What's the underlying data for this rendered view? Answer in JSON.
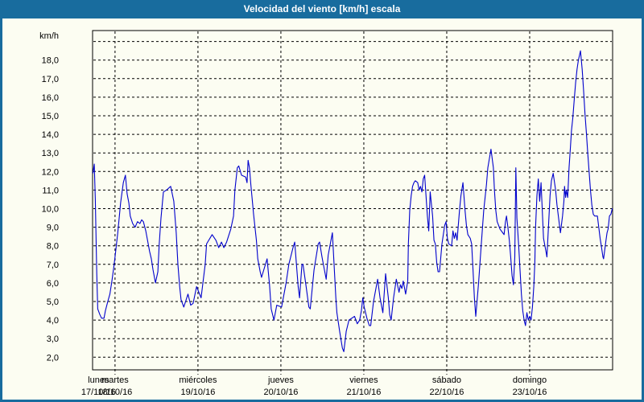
{
  "window": {
    "title": "Velocidad del viento [km/h] escala"
  },
  "colors": {
    "header_bg": "#186c9e",
    "header_text": "#ffffff",
    "border": "#186c9e",
    "chart_bg": "#fcfdf2",
    "line": "#0000cc",
    "grid": "#000000",
    "text": "#000000"
  },
  "chart_data": {
    "type": "line",
    "title": "Velocidad del viento [km/h] escala",
    "ylabel": "km/h",
    "grid": true,
    "legend_position": "none",
    "y_gridline_min": 2,
    "y_gridline_max": 19,
    "y_tick_values": [
      18,
      17,
      16,
      15,
      14,
      13,
      12,
      11,
      10,
      9,
      8,
      7,
      6,
      5,
      4,
      3,
      2
    ],
    "y_tick_labels": [
      "18,0",
      "17,0",
      "16,0",
      "15,0",
      "14,0",
      "13,0",
      "12,0",
      "11,0",
      "10,0",
      "9,0",
      "8,0",
      "7,0",
      "6,0",
      "5,0",
      "4,0",
      "3,0",
      "2,0"
    ],
    "x_domain_hours": [
      17.5,
      168
    ],
    "x_days": [
      {
        "name": "lunes",
        "date": "17/10/16",
        "tick_hour": 0,
        "label_hour": 19.2
      },
      {
        "name": "martes",
        "date": "18/10/16",
        "tick_hour": 24,
        "label_hour": 24
      },
      {
        "name": "miércoles",
        "date": "19/10/16",
        "tick_hour": 48,
        "label_hour": 48
      },
      {
        "name": "jueves",
        "date": "20/10/16",
        "tick_hour": 72,
        "label_hour": 72
      },
      {
        "name": "viernes",
        "date": "21/10/16",
        "tick_hour": 96,
        "label_hour": 96
      },
      {
        "name": "sábado",
        "date": "22/10/16",
        "tick_hour": 120,
        "label_hour": 120
      },
      {
        "name": "domingo",
        "date": "23/10/16",
        "tick_hour": 144,
        "label_hour": 144
      }
    ],
    "series": [
      {
        "name": "Velocidad del viento [km/h]",
        "points": [
          [
            17.6,
            11.9
          ],
          [
            18,
            12.4
          ],
          [
            18.3,
            10.5
          ],
          [
            18.7,
            6.5
          ],
          [
            19,
            4.6
          ],
          [
            19.6,
            4.3
          ],
          [
            20.1,
            4.1
          ],
          [
            20.8,
            4.1
          ],
          [
            21.2,
            4.5
          ],
          [
            21.9,
            5
          ],
          [
            22.5,
            5.4
          ],
          [
            23.1,
            6.1
          ],
          [
            23.6,
            6.8
          ],
          [
            24,
            7.4
          ],
          [
            24.8,
            8.7
          ],
          [
            25.6,
            10.3
          ],
          [
            26.4,
            11.4
          ],
          [
            27,
            11.8
          ],
          [
            27.5,
            10.8
          ],
          [
            28,
            10.3
          ],
          [
            28.4,
            9.6
          ],
          [
            29.1,
            9.2
          ],
          [
            29.8,
            9
          ],
          [
            30.5,
            9.3
          ],
          [
            31.2,
            9.2
          ],
          [
            31.7,
            9.4
          ],
          [
            32.2,
            9.3
          ],
          [
            32.9,
            8.8
          ],
          [
            33.6,
            8.1
          ],
          [
            34,
            7.7
          ],
          [
            34.5,
            7.3
          ],
          [
            35,
            6.7
          ],
          [
            35.7,
            6
          ],
          [
            36.4,
            6.6
          ],
          [
            36.8,
            8.1
          ],
          [
            37.3,
            9.5
          ],
          [
            38,
            10.9
          ],
          [
            38.9,
            11
          ],
          [
            40.1,
            11.2
          ],
          [
            41,
            10.4
          ],
          [
            41.7,
            8.7
          ],
          [
            42.2,
            7
          ],
          [
            42.7,
            5.8
          ],
          [
            43.1,
            5.1
          ],
          [
            43.9,
            4.7
          ],
          [
            45.1,
            5.4
          ],
          [
            45.9,
            4.8
          ],
          [
            46.6,
            4.9
          ],
          [
            47.6,
            5.8
          ],
          [
            48.9,
            5.2
          ],
          [
            50.1,
            7
          ],
          [
            50.5,
            8.1
          ],
          [
            52.1,
            8.6
          ],
          [
            53.2,
            8.3
          ],
          [
            54,
            7.9
          ],
          [
            54.8,
            8.2
          ],
          [
            55.5,
            7.9
          ],
          [
            56.3,
            8.2
          ],
          [
            57.5,
            8.9
          ],
          [
            58.3,
            9.6
          ],
          [
            58.7,
            11
          ],
          [
            59.4,
            12.2
          ],
          [
            59.8,
            12.3
          ],
          [
            60.6,
            11.8
          ],
          [
            61.8,
            11.7
          ],
          [
            62.2,
            11.4
          ],
          [
            62.5,
            12.6
          ],
          [
            62.9,
            12.2
          ],
          [
            63.3,
            11.3
          ],
          [
            64.1,
            9.7
          ],
          [
            64.9,
            8.3
          ],
          [
            65.3,
            7.3
          ],
          [
            66,
            6.6
          ],
          [
            66.4,
            6.3
          ],
          [
            68,
            7.3
          ],
          [
            68.7,
            5.9
          ],
          [
            69.2,
            4.6
          ],
          [
            70,
            4
          ],
          [
            70.8,
            4.8
          ],
          [
            72.2,
            4.7
          ],
          [
            73.5,
            6
          ],
          [
            74.3,
            7
          ],
          [
            75.5,
            7.9
          ],
          [
            76,
            8.2
          ],
          [
            77,
            5.8
          ],
          [
            77.4,
            5.2
          ],
          [
            78.1,
            7
          ],
          [
            78.4,
            7
          ],
          [
            79.3,
            5.8
          ],
          [
            80.1,
            4.7
          ],
          [
            80.5,
            4.6
          ],
          [
            81.6,
            6.7
          ],
          [
            82.8,
            8.1
          ],
          [
            83.2,
            8.2
          ],
          [
            83.9,
            7.4
          ],
          [
            84.3,
            7
          ],
          [
            85.1,
            6.2
          ],
          [
            85.7,
            7.5
          ],
          [
            86.9,
            8.7
          ],
          [
            87.9,
            5.2
          ],
          [
            88.2,
            4.4
          ],
          [
            89,
            3.4
          ],
          [
            89.8,
            2.5
          ],
          [
            90.2,
            2.3
          ],
          [
            90.9,
            3.4
          ],
          [
            91.7,
            4
          ],
          [
            92.5,
            4.1
          ],
          [
            93.3,
            4.2
          ],
          [
            94.1,
            3.8
          ],
          [
            94.8,
            4
          ],
          [
            95.3,
            4.5
          ],
          [
            95.7,
            5.2
          ],
          [
            96.1,
            4.7
          ],
          [
            96.9,
            4.1
          ],
          [
            97.6,
            3.7
          ],
          [
            98,
            3.7
          ],
          [
            98.8,
            5
          ],
          [
            100,
            6.2
          ],
          [
            100.7,
            5.2
          ],
          [
            101.5,
            4.4
          ],
          [
            102.3,
            6.5
          ],
          [
            103.1,
            5.2
          ],
          [
            103.5,
            4.3
          ],
          [
            103.9,
            4
          ],
          [
            104.6,
            5.2
          ],
          [
            105.4,
            6.2
          ],
          [
            106.2,
            5.5
          ],
          [
            106.6,
            5.9
          ],
          [
            107,
            5.7
          ],
          [
            107.4,
            6.1
          ],
          [
            108.1,
            5.4
          ],
          [
            108.7,
            6.1
          ],
          [
            108.9,
            8.1
          ],
          [
            109.3,
            9.9
          ],
          [
            109.7,
            10.7
          ],
          [
            110.1,
            11.2
          ],
          [
            110.5,
            11.4
          ],
          [
            110.9,
            11.5
          ],
          [
            111.6,
            11.4
          ],
          [
            112,
            11
          ],
          [
            112.4,
            11.2
          ],
          [
            112.8,
            10.9
          ],
          [
            113.2,
            11.6
          ],
          [
            113.6,
            11.8
          ],
          [
            114,
            10.7
          ],
          [
            114.4,
            9.6
          ],
          [
            114.8,
            8.8
          ],
          [
            115.2,
            10.9
          ],
          [
            115.9,
            9.6
          ],
          [
            116.3,
            8.3
          ],
          [
            116.7,
            8.1
          ],
          [
            117.1,
            7.1
          ],
          [
            117.5,
            6.6
          ],
          [
            117.9,
            6.6
          ],
          [
            118.6,
            8.1
          ],
          [
            119.4,
            9.1
          ],
          [
            119.8,
            9.3
          ],
          [
            120.2,
            8.4
          ],
          [
            120.6,
            8.1
          ],
          [
            121.4,
            8
          ],
          [
            121.8,
            8.8
          ],
          [
            122.2,
            8.4
          ],
          [
            122.6,
            8.7
          ],
          [
            123,
            8.3
          ],
          [
            123.7,
            9.9
          ],
          [
            124.1,
            10.7
          ],
          [
            124.7,
            11.4
          ],
          [
            125.3,
            9.9
          ],
          [
            125.7,
            9.1
          ],
          [
            126.1,
            8.6
          ],
          [
            126.8,
            8.4
          ],
          [
            127.2,
            8.1
          ],
          [
            127.6,
            6.7
          ],
          [
            128,
            5.2
          ],
          [
            128.4,
            4.2
          ],
          [
            129.2,
            6
          ],
          [
            130,
            8.1
          ],
          [
            130.7,
            9.9
          ],
          [
            131.5,
            11.3
          ],
          [
            131.9,
            12.2
          ],
          [
            132.8,
            13.2
          ],
          [
            133.5,
            12.2
          ],
          [
            133.8,
            11
          ],
          [
            134.2,
            9.9
          ],
          [
            134.6,
            9.3
          ],
          [
            135,
            9.1
          ],
          [
            135.4,
            8.9
          ],
          [
            136.2,
            8.7
          ],
          [
            136.6,
            8.6
          ],
          [
            137,
            9.3
          ],
          [
            137.3,
            9.6
          ],
          [
            137.7,
            9
          ],
          [
            138.1,
            8.3
          ],
          [
            138.5,
            7.4
          ],
          [
            138.9,
            6.4
          ],
          [
            139.3,
            5.9
          ],
          [
            139.7,
            7.4
          ],
          [
            140,
            12.2
          ],
          [
            140.3,
            9.5
          ],
          [
            140.8,
            8.1
          ],
          [
            141.2,
            6.7
          ],
          [
            141.6,
            5.4
          ],
          [
            142,
            4.5
          ],
          [
            142.4,
            4
          ],
          [
            142.8,
            3.7
          ],
          [
            143.2,
            4.4
          ],
          [
            143.6,
            4
          ],
          [
            144,
            4.2
          ],
          [
            144.4,
            4
          ],
          [
            144.8,
            4.7
          ],
          [
            145.2,
            5.8
          ],
          [
            145.5,
            7.1
          ],
          [
            145.7,
            9
          ],
          [
            146.1,
            10.7
          ],
          [
            146.5,
            11.6
          ],
          [
            146.9,
            10.4
          ],
          [
            147.3,
            11.4
          ],
          [
            148,
            8.4
          ],
          [
            148.8,
            7.6
          ],
          [
            149,
            7.4
          ],
          [
            149.6,
            9.6
          ],
          [
            149.9,
            10.7
          ],
          [
            150.3,
            11.5
          ],
          [
            150.8,
            11.9
          ],
          [
            151.5,
            11
          ],
          [
            151.9,
            10.2
          ],
          [
            152.3,
            9.6
          ],
          [
            152.7,
            9
          ],
          [
            152.9,
            8.7
          ],
          [
            153.5,
            9.6
          ],
          [
            153.9,
            10.4
          ],
          [
            154.1,
            11.2
          ],
          [
            154.4,
            10.6
          ],
          [
            154.6,
            11
          ],
          [
            155,
            10.6
          ],
          [
            155.4,
            12.2
          ],
          [
            155.8,
            13.3
          ],
          [
            156.1,
            14.2
          ],
          [
            156.5,
            14.9
          ],
          [
            156.9,
            15.9
          ],
          [
            157.3,
            16.8
          ],
          [
            157.7,
            17.5
          ],
          [
            158.1,
            18
          ],
          [
            158.7,
            18.5
          ],
          [
            159.2,
            17.5
          ],
          [
            159.6,
            16.4
          ],
          [
            160,
            15.1
          ],
          [
            160.4,
            14.1
          ],
          [
            160.8,
            13
          ],
          [
            161.2,
            12
          ],
          [
            161.6,
            11
          ],
          [
            162,
            10.2
          ],
          [
            162.4,
            9.7
          ],
          [
            162.8,
            9.6
          ],
          [
            163.6,
            9.6
          ],
          [
            164,
            9
          ],
          [
            164.4,
            8.4
          ],
          [
            164.8,
            7.9
          ],
          [
            165.2,
            7.4
          ],
          [
            165.4,
            7.3
          ],
          [
            165.8,
            7.9
          ],
          [
            166.1,
            8.3
          ],
          [
            166.4,
            8.7
          ],
          [
            166.7,
            8.9
          ],
          [
            167.1,
            9.6
          ],
          [
            167.5,
            9.7
          ],
          [
            167.9,
            10
          ],
          [
            168,
            10
          ]
        ]
      }
    ]
  }
}
